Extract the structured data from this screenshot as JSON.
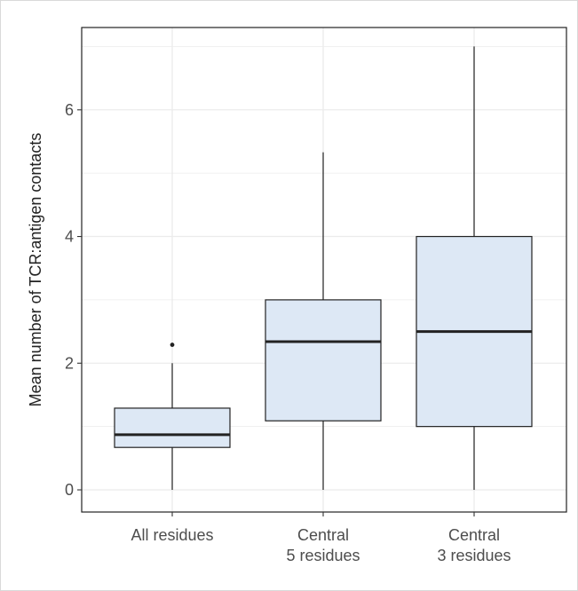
{
  "chart_data": {
    "type": "boxplot",
    "title": "",
    "xlabel": "",
    "ylabel": "Mean number of TCR:antigen contacts",
    "ylim": [
      -0.35,
      7.3
    ],
    "y_ticks": [
      0,
      2,
      4,
      6
    ],
    "grid": true,
    "legend": "none",
    "categories": [
      [
        "All residues"
      ],
      [
        "Central",
        "5 residues"
      ],
      [
        "Central",
        "3 residues"
      ]
    ],
    "boxes": [
      {
        "whisker_low": 0,
        "q1": 0.67,
        "median": 0.87,
        "q3": 1.29,
        "whisker_high": 2.0,
        "outliers": [
          2.29
        ]
      },
      {
        "whisker_low": 0,
        "q1": 1.09,
        "median": 2.34,
        "q3": 3.0,
        "whisker_high": 5.33,
        "outliers": []
      },
      {
        "whisker_low": 0,
        "q1": 1.0,
        "median": 2.5,
        "q3": 4.0,
        "whisker_high": 7.0,
        "outliers": []
      }
    ],
    "colors": {
      "box_fill": "#dde8f5",
      "stroke": "#222222",
      "grid": "#ebebeb"
    }
  }
}
